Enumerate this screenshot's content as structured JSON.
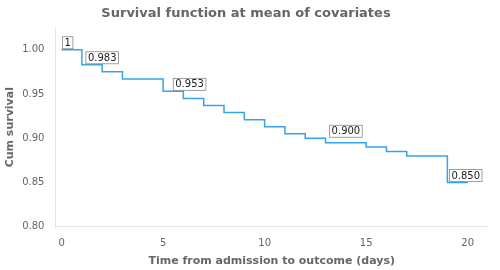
{
  "chart_data": {
    "type": "line",
    "title": "Survival function at mean of covariates",
    "xlabel": "Time from admission to outcome (days)",
    "ylabel": "Cum survival",
    "x": [
      0,
      1,
      1,
      2,
      2,
      3,
      3,
      5,
      5,
      6,
      6,
      7,
      7,
      8,
      8,
      9,
      9,
      10,
      10,
      11,
      11,
      12,
      12,
      13,
      13,
      15,
      15,
      16,
      16,
      17,
      17,
      19,
      19,
      20,
      20
    ],
    "values": [
      1.0,
      1.0,
      0.983,
      0.983,
      0.975,
      0.975,
      0.967,
      0.967,
      0.953,
      0.953,
      0.945,
      0.945,
      0.937,
      0.937,
      0.929,
      0.929,
      0.921,
      0.921,
      0.913,
      0.913,
      0.905,
      0.905,
      0.9,
      0.9,
      0.895,
      0.895,
      0.89,
      0.89,
      0.885,
      0.885,
      0.88,
      0.88,
      0.85,
      0.85,
      0.85
    ],
    "xlim": [
      -0.3,
      21.0
    ],
    "ylim": [
      0.8,
      1.025
    ],
    "xticks": [
      0,
      5,
      10,
      15,
      20
    ],
    "yticks": [
      {
        "value": 0.8,
        "label": "0.80"
      },
      0.85,
      {
        "value": 0.9,
        "label": "0.90"
      },
      0.95,
      {
        "value": 1.0,
        "label": "1.00"
      }
    ],
    "annotations": [
      {
        "text": "1",
        "x": 0.05,
        "y": 1.0
      },
      {
        "text": "0.983",
        "x": 1.2,
        "y": 0.983
      },
      {
        "text": "0.953",
        "x": 5.5,
        "y": 0.953
      },
      {
        "text": "0.900",
        "x": 13.2,
        "y": 0.9
      },
      {
        "text": "0.850",
        "x": 19.1,
        "y": 0.85
      }
    ],
    "grid": false
  }
}
